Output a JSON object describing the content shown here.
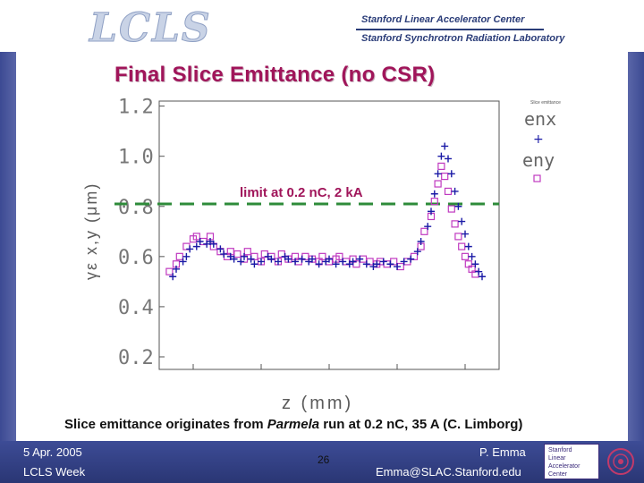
{
  "header": {
    "logo": "LCLS",
    "lab_line1": "Stanford Linear Accelerator Center",
    "lab_line2": "Stanford Synchrotron Radiation Laboratory"
  },
  "slide": {
    "title": "Final Slice Emittance (no CSR)",
    "caption": "Slice emittance originates from Parmela run at 0.2 nC, 35 A (C. Limborg)",
    "caption_pre": "Slice emittance originates from ",
    "caption_em": "Parmela",
    "caption_post": " run at 0.2 nC, 35 A (C. Limborg)",
    "ylabel": "γε x,y (μm)",
    "xlabel": "z (mm)"
  },
  "footer": {
    "date": "5 Apr. 2005",
    "event": "LCLS Week",
    "page": "26",
    "author": "P. Emma",
    "email": "Emma@SLAC.Stanford.edu",
    "badge_line1": "Stanford",
    "badge_line2": "Linear",
    "badge_line3": "Accelerator",
    "badge_line4": "Center"
  },
  "colors": {
    "title": "#a0155a",
    "limit_line": "#2e8b3a",
    "enx": "#1a1aa6",
    "eny": "#c03ac0"
  },
  "chart_data": {
    "type": "scatter",
    "title": "Final Slice Emittance (no CSR)",
    "xlabel": "z (mm)",
    "ylabel": "γε x,y (μm)",
    "ylim": [
      0.15,
      1.22
    ],
    "xlim": [
      0,
      1
    ],
    "y_ticks": [
      "1.2",
      "1.0",
      "0.8",
      "0.6",
      "0.4",
      "0.2"
    ],
    "y_tick_values": [
      1.2,
      1.0,
      0.8,
      0.6,
      0.4,
      0.2
    ],
    "annotation": "limit at 0.2 nC, 2 kA",
    "limit_value": 0.81,
    "legend_header": "Slice emittance",
    "series": [
      {
        "name": "enx",
        "marker": "+",
        "x": [
          0.04,
          0.05,
          0.07,
          0.08,
          0.09,
          0.11,
          0.12,
          0.14,
          0.15,
          0.16,
          0.18,
          0.19,
          0.21,
          0.22,
          0.24,
          0.25,
          0.27,
          0.28,
          0.3,
          0.32,
          0.33,
          0.35,
          0.37,
          0.38,
          0.4,
          0.42,
          0.44,
          0.45,
          0.47,
          0.49,
          0.5,
          0.52,
          0.54,
          0.56,
          0.57,
          0.59,
          0.61,
          0.63,
          0.64,
          0.66,
          0.68,
          0.7,
          0.72,
          0.74,
          0.76,
          0.77,
          0.79,
          0.8,
          0.81,
          0.82,
          0.83,
          0.84,
          0.85,
          0.86,
          0.87,
          0.88,
          0.89,
          0.9,
          0.91,
          0.92,
          0.93,
          0.94,
          0.95
        ],
        "y": [
          0.52,
          0.55,
          0.58,
          0.6,
          0.63,
          0.64,
          0.66,
          0.65,
          0.66,
          0.65,
          0.63,
          0.61,
          0.6,
          0.59,
          0.58,
          0.6,
          0.59,
          0.57,
          0.58,
          0.6,
          0.59,
          0.58,
          0.6,
          0.59,
          0.58,
          0.59,
          0.58,
          0.59,
          0.57,
          0.58,
          0.59,
          0.57,
          0.58,
          0.57,
          0.58,
          0.59,
          0.57,
          0.56,
          0.57,
          0.58,
          0.57,
          0.56,
          0.58,
          0.59,
          0.62,
          0.66,
          0.72,
          0.78,
          0.85,
          0.93,
          1.0,
          1.04,
          0.99,
          0.93,
          0.86,
          0.8,
          0.74,
          0.69,
          0.64,
          0.6,
          0.57,
          0.54,
          0.52
        ]
      },
      {
        "name": "eny",
        "marker": "square",
        "x": [
          0.03,
          0.05,
          0.06,
          0.08,
          0.1,
          0.11,
          0.13,
          0.15,
          0.16,
          0.18,
          0.2,
          0.21,
          0.23,
          0.25,
          0.26,
          0.28,
          0.3,
          0.31,
          0.33,
          0.35,
          0.36,
          0.38,
          0.4,
          0.41,
          0.43,
          0.45,
          0.47,
          0.48,
          0.5,
          0.52,
          0.53,
          0.55,
          0.57,
          0.58,
          0.6,
          0.62,
          0.64,
          0.65,
          0.67,
          0.69,
          0.71,
          0.73,
          0.75,
          0.77,
          0.78,
          0.8,
          0.81,
          0.82,
          0.83,
          0.84,
          0.85,
          0.86,
          0.87,
          0.88,
          0.89,
          0.9,
          0.91,
          0.92,
          0.93
        ],
        "y": [
          0.54,
          0.57,
          0.6,
          0.64,
          0.67,
          0.68,
          0.66,
          0.68,
          0.64,
          0.62,
          0.6,
          0.62,
          0.61,
          0.59,
          0.62,
          0.6,
          0.58,
          0.61,
          0.6,
          0.58,
          0.61,
          0.59,
          0.6,
          0.58,
          0.6,
          0.59,
          0.58,
          0.6,
          0.58,
          0.59,
          0.6,
          0.58,
          0.59,
          0.57,
          0.59,
          0.58,
          0.57,
          0.58,
          0.57,
          0.58,
          0.56,
          0.58,
          0.6,
          0.64,
          0.7,
          0.76,
          0.82,
          0.89,
          0.96,
          0.92,
          0.86,
          0.79,
          0.73,
          0.68,
          0.64,
          0.6,
          0.57,
          0.55,
          0.53
        ]
      }
    ]
  }
}
